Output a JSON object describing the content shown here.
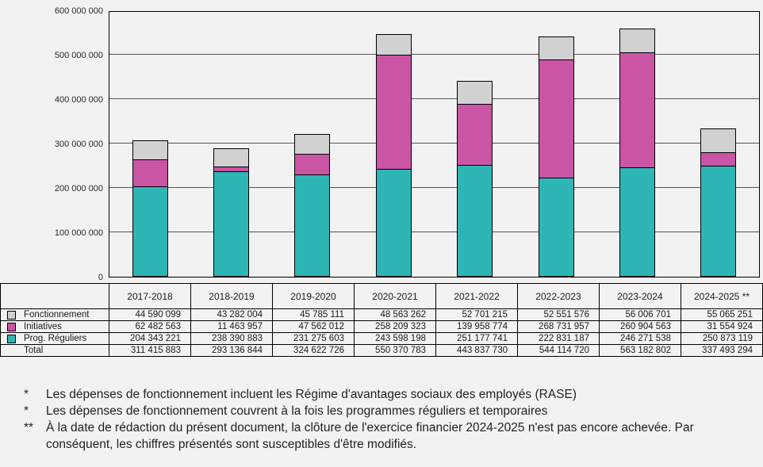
{
  "chart_data": {
    "type": "bar",
    "stacked": true,
    "title": "",
    "xlabel": "",
    "ylabel": "",
    "ylim": [
      0,
      600000000
    ],
    "ytick_interval": 100000000,
    "ytick_labels": [
      "0",
      "100 000 000",
      "200 000 000",
      "300 000 000",
      "400 000 000",
      "500 000 000",
      "600 000 000"
    ],
    "grid": true,
    "legend_position": "table-left",
    "categories": [
      "2017-2018",
      "2018-2019",
      "2019-2020",
      "2020-2021",
      "2021-2022",
      "2022-2023",
      "2023-2024",
      "2024-2025 **"
    ],
    "series": [
      {
        "name": "Prog. Réguliers",
        "color": "#2eb6b6",
        "values": [
          204343221,
          238390883,
          231275603,
          243598198,
          251177741,
          222831187,
          246271538,
          250873119
        ]
      },
      {
        "name": "Initiatives",
        "color": "#ca55a4",
        "values": [
          62482563,
          11463957,
          47562012,
          258209323,
          139958774,
          268731957,
          260904563,
          31554924
        ]
      },
      {
        "name": "Fonctionnement",
        "color": "#d1d1d1",
        "values": [
          44590099,
          43282004,
          45785111,
          48563262,
          52701215,
          52551576,
          56006701,
          55065251
        ]
      }
    ]
  },
  "table": {
    "header": [
      "2017-2018",
      "2018-2019",
      "2019-2020",
      "2020-2021",
      "2021-2022",
      "2022-2023",
      "2023-2024",
      "2024-2025 **"
    ],
    "rows": [
      {
        "label": "Fonctionnement",
        "swatch": "#d1d1d1",
        "values": [
          "44 590 099",
          "43 282 004",
          "45 785 111",
          "48 563 262",
          "52 701 215",
          "52 551 576",
          "56 006 701",
          "55 065 251"
        ]
      },
      {
        "label": "Initiatives",
        "swatch": "#ca55a4",
        "values": [
          "62 482 563",
          "11 463 957",
          "47 562 012",
          "258 209 323",
          "139 958 774",
          "268 731 957",
          "260 904 563",
          "31 554 924"
        ]
      },
      {
        "label": "Prog. Réguliers",
        "swatch": "#2eb6b6",
        "values": [
          "204 343 221",
          "238 390 883",
          "231 275 603",
          "243 598 198",
          "251 177 741",
          "222 831 187",
          "246 271 538",
          "250 873 119"
        ]
      },
      {
        "label": "Total",
        "swatch": null,
        "values": [
          "311 415 883",
          "293 136 844",
          "324 622 726",
          "550 370 783",
          "443 837 730",
          "544 114 720",
          "563 182 802",
          "337 493 294"
        ]
      }
    ]
  },
  "footnotes": [
    {
      "marker": "*",
      "text": "Les dépenses de fonctionnement incluent les Régime d'avantages sociaux des employés (RASE)"
    },
    {
      "marker": "*",
      "text": "Les dépenses de fonctionnement couvrent à la fois les programmes réguliers et temporaires"
    },
    {
      "marker": "**",
      "text": "À la date de rédaction du présent document, la clôture de l'exercice financier 2024-2025 n'est pas encore achevée. Par conséquent, les chiffres présentés sont susceptibles d'être modifiés."
    }
  ]
}
